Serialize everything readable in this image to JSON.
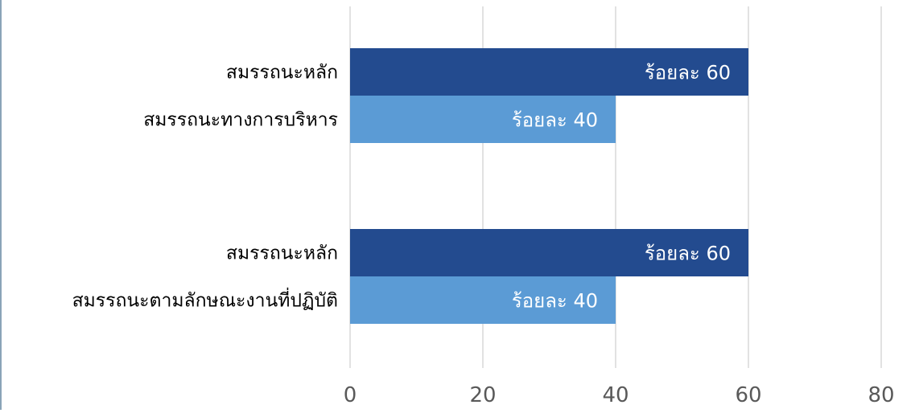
{
  "chart_data": {
    "type": "bar",
    "orientation": "horizontal",
    "grid": true,
    "legend": "none",
    "xlim": [
      0,
      80
    ],
    "x_ticks": [
      "0",
      "20",
      "40",
      "60",
      "80"
    ],
    "groups": [
      {
        "bars": [
          {
            "label": "สมรรถนะหลัก",
            "value": 60,
            "value_label": "ร้อยละ 60",
            "color": "#234b8f"
          },
          {
            "label": "สมรรถนะทางการบริหาร",
            "value": 40,
            "value_label": "ร้อยละ 40",
            "color": "#5b9bd5"
          }
        ]
      },
      {
        "bars": [
          {
            "label": "สมรรถนะหลัก",
            "value": 60,
            "value_label": "ร้อยละ 60",
            "color": "#234b8f"
          },
          {
            "label": "สมรรถนะตามลักษณะงานที่ปฏิบัติ",
            "value": 40,
            "value_label": "ร้อยละ 40",
            "color": "#5b9bd5"
          }
        ]
      }
    ],
    "colors": {
      "grid": "#d9d9d9",
      "tick_text": "#595959",
      "category_text": "#000000",
      "value_text": "#ffffff"
    }
  }
}
